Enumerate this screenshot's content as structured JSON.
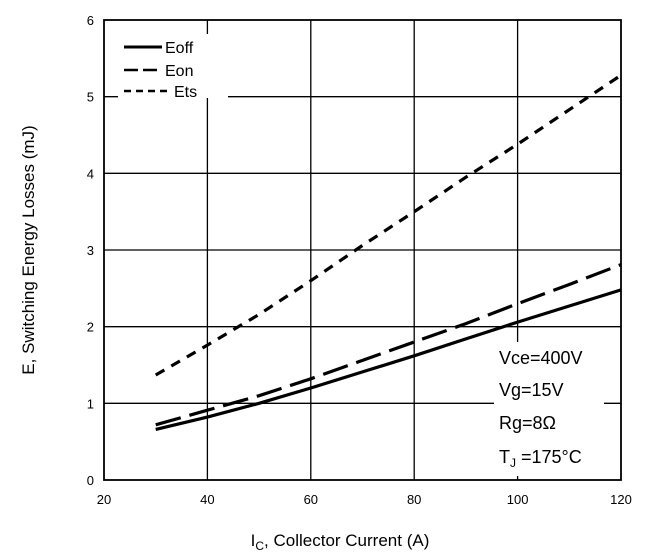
{
  "chart_data": {
    "type": "line",
    "xlabel_main": "I",
    "xlabel_sub": "C",
    "xlabel_rest": ", Collector Current (A)",
    "ylabel": "E, Switching Energy Losses (mJ)",
    "xlim": [
      20,
      120
    ],
    "ylim": [
      0,
      6
    ],
    "x_ticks": [
      20,
      40,
      60,
      80,
      100,
      120
    ],
    "y_ticks": [
      0,
      1,
      2,
      3,
      4,
      5,
      6
    ],
    "grid": true,
    "legend_position": "top-left",
    "series": [
      {
        "name": "Eoff",
        "style": "solid",
        "x": [
          30,
          40,
          50,
          60,
          70,
          80,
          90,
          100,
          110,
          120
        ],
        "y": [
          0.66,
          0.82,
          1.0,
          1.2,
          1.41,
          1.62,
          1.84,
          2.06,
          2.27,
          2.48
        ]
      },
      {
        "name": "Eon",
        "style": "long-dash",
        "x": [
          30,
          40,
          50,
          60,
          70,
          80,
          90,
          100,
          110,
          120
        ],
        "y": [
          0.72,
          0.91,
          1.1,
          1.32,
          1.56,
          1.8,
          2.04,
          2.3,
          2.55,
          2.81
        ]
      },
      {
        "name": "Ets",
        "style": "short-dash",
        "x": [
          30,
          40,
          50,
          60,
          70,
          80,
          90,
          100,
          110,
          120
        ],
        "y": [
          1.37,
          1.76,
          2.16,
          2.6,
          3.06,
          3.5,
          3.95,
          4.38,
          4.83,
          5.28
        ]
      }
    ],
    "annotations": {
      "vce": "Vce=400V",
      "vg": "Vg=15V",
      "rg": "Rg=8Ω",
      "tj_main": "T",
      "tj_sub": "J",
      "tj_rest": " =175°C"
    }
  }
}
